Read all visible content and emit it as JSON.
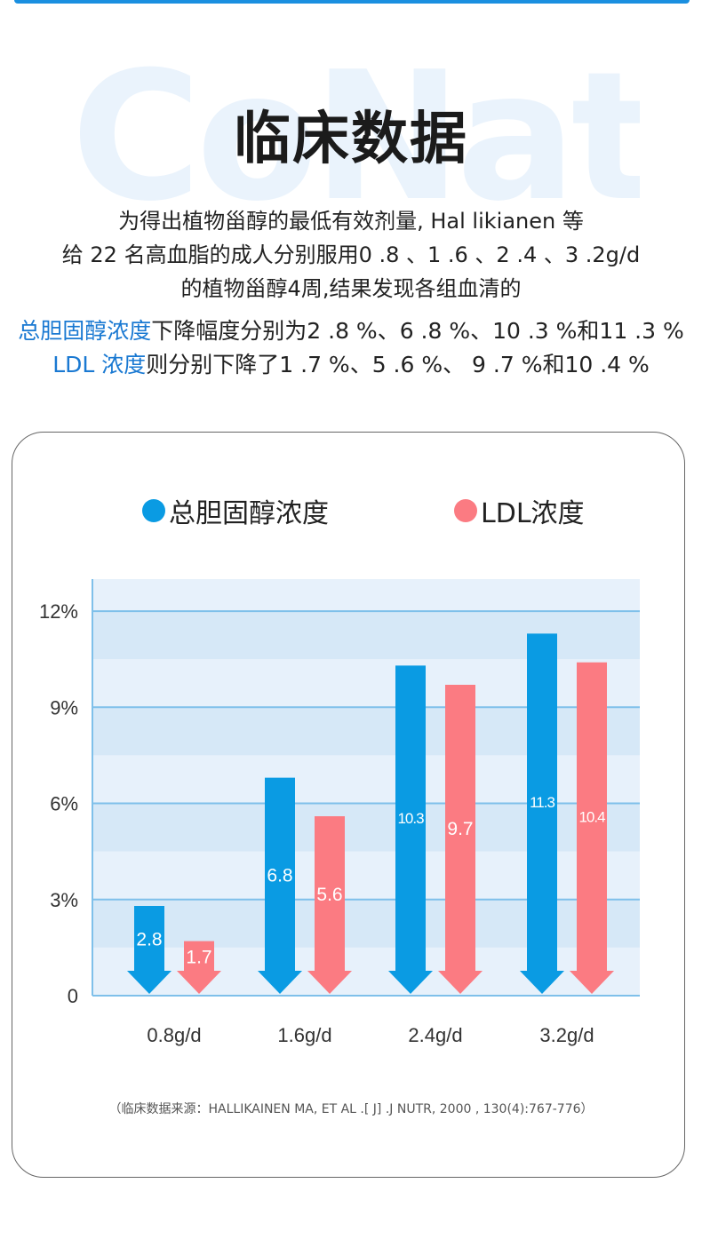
{
  "watermark": "CoNat",
  "title": "临床数据",
  "intro": {
    "line1": "为得出植物甾醇的最低有效剂量, Hal likianen 等",
    "line2": "给 22 名高血脂的成人分别服用0 .8 、1 .6 、2 .4 、3 .2g/d",
    "line3": "的植物甾醇4周,结果发现各组血清的"
  },
  "results": {
    "line1_highlight": "总胆固醇浓度",
    "line1_text": "下降幅度分别为2 .8 %、6 .8 %、10 .3 %和11 .3 %",
    "line2_highlight": "LDL 浓度",
    "line2_text": "则分别下降了1 .7 %、5 .6 %、 9 .7 %和10 .4 %"
  },
  "colors": {
    "accent": "#1a79d2",
    "series_blue": "#0a9be3",
    "series_red": "#fb7b82",
    "plot_band_dark": "#d6e8f7",
    "plot_band_light": "#e7f1fb",
    "grid": "#7fc0ea"
  },
  "chart_data": {
    "type": "bar",
    "categories": [
      "0.8g/d",
      "1.6g/d",
      "2.4g/d",
      "3.2g/d"
    ],
    "series": [
      {
        "name": "总胆固醇浓度",
        "values": [
          2.8,
          6.8,
          10.3,
          11.3
        ],
        "labels": [
          "2.8",
          "6.8",
          "10.3",
          "11.3"
        ],
        "color": "#0a9be3"
      },
      {
        "name": "LDL浓度",
        "values": [
          1.7,
          5.6,
          9.7,
          10.4
        ],
        "labels": [
          "1.7",
          "5.6",
          "9.7",
          "10.4"
        ],
        "color": "#fb7b82"
      }
    ],
    "yticks": [
      "0",
      "3%",
      "6%",
      "9%",
      "12%"
    ],
    "ytick_values": [
      0,
      3,
      6,
      9,
      12
    ],
    "ylim": [
      0,
      13
    ],
    "legend": "top",
    "grid": true
  },
  "source": "（临床数据来源：HALLIKAINEN MA, ET AL .[ J] .J NUTR, 2000 , 130(4):767-776）"
}
